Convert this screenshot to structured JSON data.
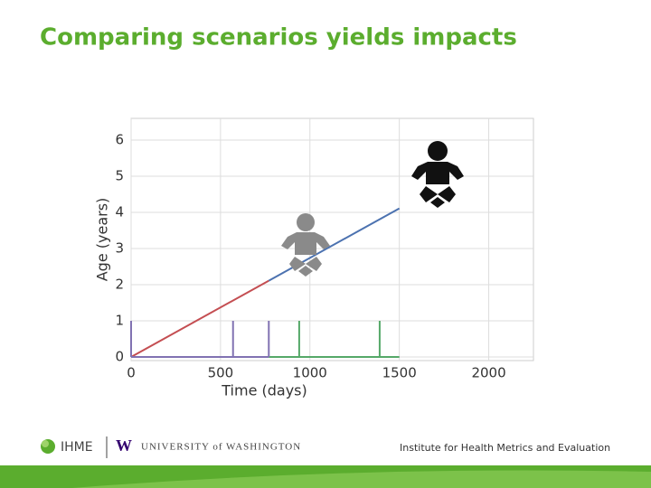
{
  "slide": {
    "title": "Comparing scenarios yields impacts"
  },
  "chart_data": {
    "type": "line",
    "xlabel": "Time (days)",
    "ylabel": "Age (years)",
    "xlim": [
      0,
      2250
    ],
    "ylim": [
      -0.1,
      6.6
    ],
    "xticks": [
      0,
      500,
      1000,
      1500,
      2000
    ],
    "yticks": [
      0,
      1,
      2,
      3,
      4,
      5,
      6
    ],
    "grid": true,
    "series": [
      {
        "color": "#c44e52",
        "x": [
          0,
          770
        ],
        "values": [
          0,
          2.11
        ]
      },
      {
        "color": "#4c72b0",
        "x": [
          770,
          1500
        ],
        "values": [
          2.11,
          4.11
        ]
      },
      {
        "color": "#8172b2",
        "x": [
          0,
          770
        ],
        "values": [
          0,
          0
        ]
      },
      {
        "color": "#55a868",
        "x": [
          770,
          1500
        ],
        "values": [
          0,
          0
        ]
      }
    ],
    "events": [
      {
        "color": "#8172b2",
        "x": [
          0,
          570,
          770
        ],
        "values": [
          1,
          1,
          1
        ]
      },
      {
        "color": "#55a868",
        "x": [
          940,
          1390
        ],
        "values": [
          1,
          1
        ]
      }
    ]
  },
  "footer": {
    "ihme": "IHME",
    "uw_logo": "W",
    "university": "UNIVERSITY of WASHINGTON",
    "institute": "Institute for Health Metrics and Evaluation"
  }
}
